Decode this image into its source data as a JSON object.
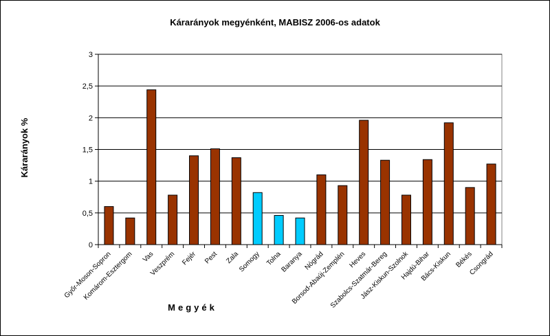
{
  "chart_data": {
    "type": "bar",
    "title": "Kárarányok megyénként, MABISZ 2006-os adatok",
    "xlabel": "Megyék",
    "ylabel": "Kárarányok %",
    "ylim": [
      0,
      3
    ],
    "yticks": [
      "0",
      "0,5",
      "1",
      "1,5",
      "2",
      "2,5",
      "3"
    ],
    "grid": true,
    "legend": "none",
    "categories": [
      "Győr-Moson-Sopron",
      "Komárom-Esztergom",
      "Vas",
      "Veszprém",
      "Fejér",
      "Pest",
      "Zala",
      "Somogy",
      "Tolna",
      "Baranya",
      "Nógrád",
      "Borsod-Abaúj-Zemplén",
      "Heves",
      "Szabolcs-Szatmár-Bereg",
      "Jász-Kiskun-Szolnok",
      "Hajdú-Bihar",
      "Bács-Kiskun",
      "Békés",
      "Csongrád"
    ],
    "values": [
      0.6,
      0.42,
      2.44,
      0.78,
      1.4,
      1.51,
      1.37,
      0.82,
      0.46,
      0.42,
      1.1,
      0.93,
      1.96,
      1.33,
      0.78,
      1.34,
      1.92,
      0.9,
      1.27
    ],
    "highlight": [
      7,
      8,
      9
    ],
    "colors": {
      "bar": "#993300",
      "highlight": "#00ccff",
      "grid": "#000000",
      "frame": "#808080"
    }
  }
}
